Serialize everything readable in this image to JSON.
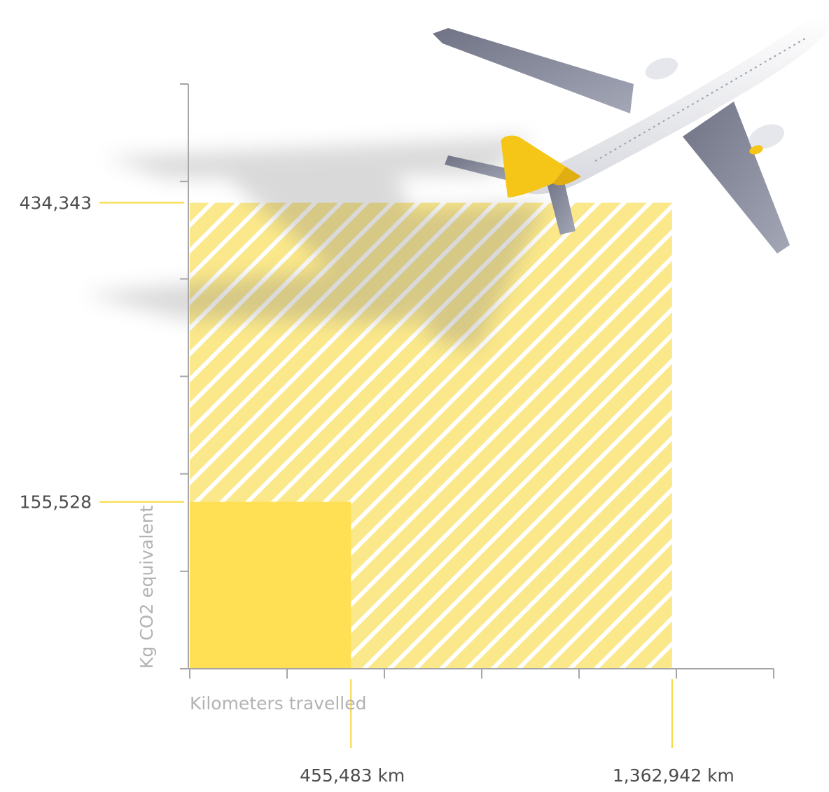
{
  "chart_data": {
    "type": "area",
    "title": "",
    "xlabel": "Kilometers travelled",
    "ylabel": "Kg CO2 equivalent",
    "xlim": [
      0,
      1650000
    ],
    "ylim": [
      0,
      545000
    ],
    "grid": false,
    "series": [
      {
        "x": 455483,
        "y": 155528,
        "x_label": "455,483 km",
        "y_label": "155,528",
        "fill": "solid",
        "color": "#ffe055"
      },
      {
        "x": 1362942,
        "y": 434343,
        "x_label": "1,362,942 km",
        "y_label": "434,343",
        "fill": "hatched",
        "color": "#fbe88a"
      }
    ],
    "x_minor_ticks": 6,
    "y_minor_ticks": 6
  },
  "colors": {
    "axis": "#a6a6a6",
    "leader": "#f7d83a",
    "plane_body": "#f2f2f4",
    "plane_wing": "#8a8e9e",
    "plane_tail": "#f5c518"
  },
  "decoration": {
    "icon": "airplane-icon"
  }
}
